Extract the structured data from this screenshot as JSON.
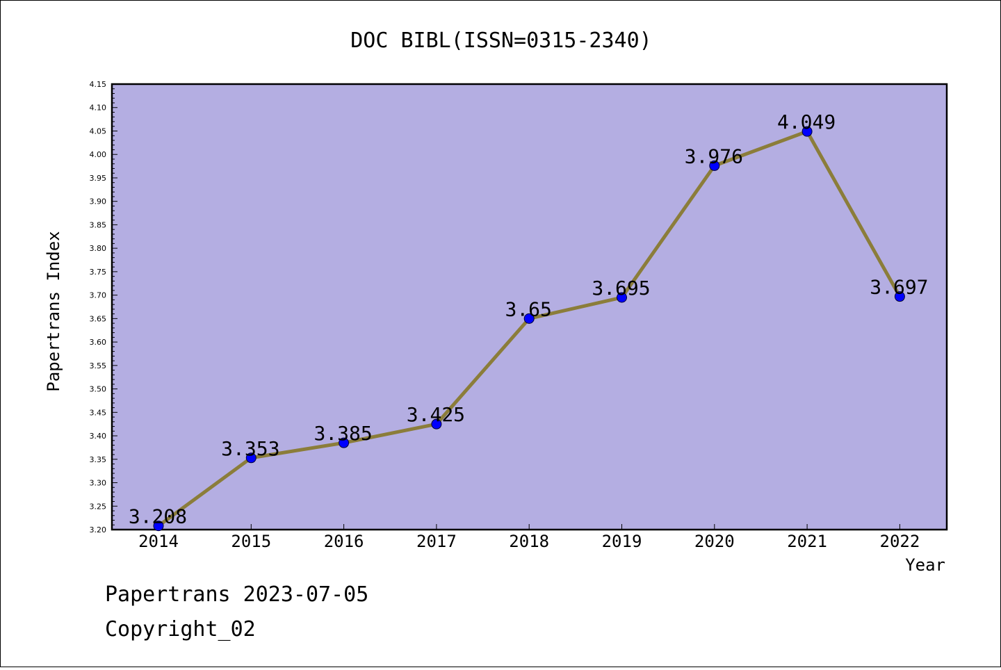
{
  "chart_data": {
    "type": "line",
    "title": "DOC BIBL(ISSN=0315-2340)",
    "xlabel": "Year",
    "ylabel": "Papertrans Index",
    "categories": [
      "2014",
      "2015",
      "2016",
      "2017",
      "2018",
      "2019",
      "2020",
      "2021",
      "2022"
    ],
    "values": [
      3.208,
      3.353,
      3.385,
      3.425,
      3.65,
      3.695,
      3.976,
      4.049,
      3.697
    ],
    "data_labels": [
      "3.208",
      "3.353",
      "3.385",
      "3.425",
      "3.65",
      "3.695",
      "3.976",
      "4.049",
      "3.697"
    ],
    "ylim": [
      3.2,
      4.15
    ],
    "yticks": [
      "3.20",
      "3.25",
      "3.30",
      "3.35",
      "3.40",
      "3.45",
      "3.50",
      "3.55",
      "3.60",
      "3.65",
      "3.70",
      "3.75",
      "3.80",
      "3.85",
      "3.90",
      "3.95",
      "4.00",
      "4.05",
      "4.10",
      "4.15"
    ],
    "grid": false,
    "colors": {
      "plot_background": "#b4aee2",
      "line": "#8b7d3a",
      "marker": "#0000ff"
    }
  },
  "footer": {
    "line1": "Papertrans 2023-07-05",
    "line2": "Copyright_02"
  }
}
